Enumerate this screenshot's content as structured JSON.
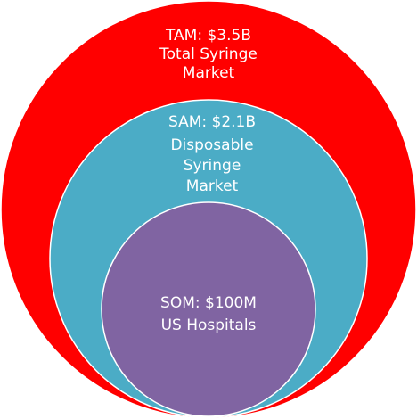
{
  "circles": [
    {
      "lines": [
        "TAM: $3.5B",
        "Total Syringe",
        "Market"
      ]
    },
    {
      "lines": [
        "SAM: $2.1B",
        "Disposable",
        "Syringe",
        "Market"
      ]
    },
    {
      "lines": [
        "SOM: $100M",
        "US Hospitals"
      ]
    }
  ]
}
